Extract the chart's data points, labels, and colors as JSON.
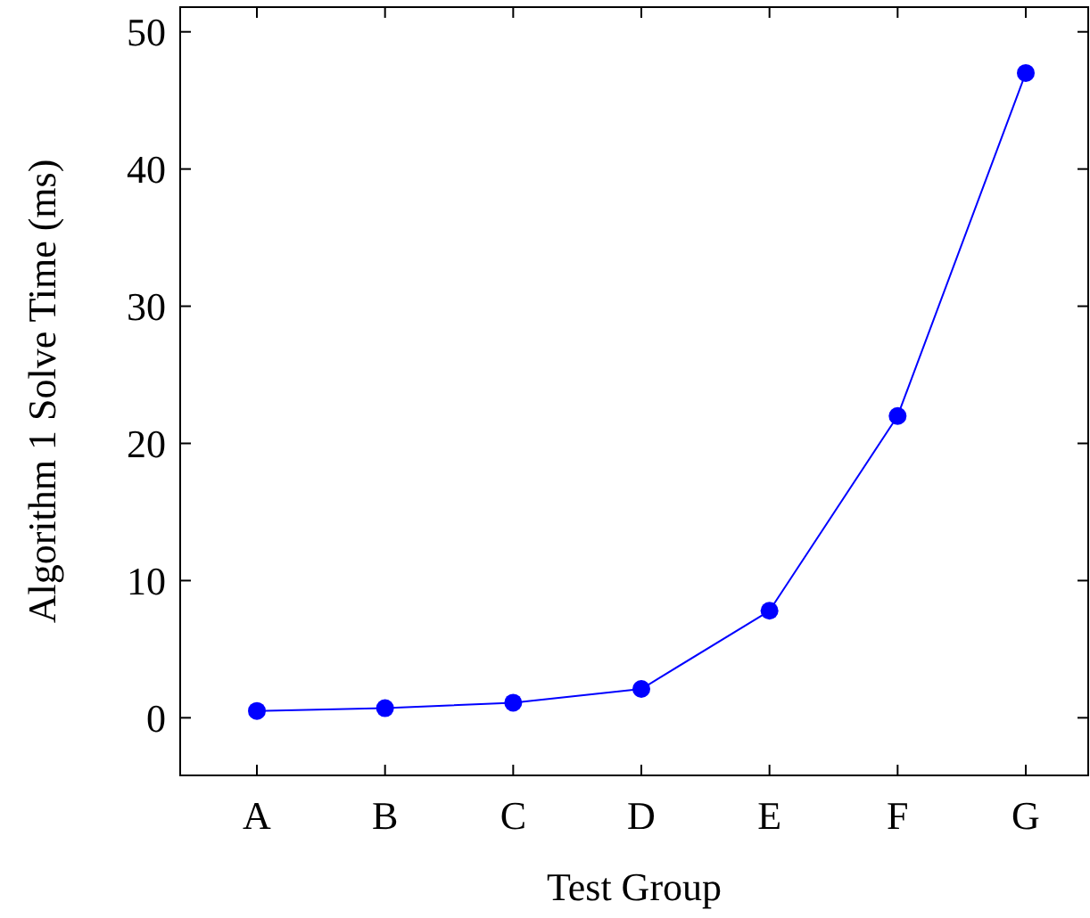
{
  "chart_data": {
    "type": "line",
    "xlabel": "Test Group",
    "ylabel": "Algorithm 1 Solve Time (ms)",
    "categories": [
      "A",
      "B",
      "C",
      "D",
      "E",
      "F",
      "G"
    ],
    "series": [
      {
        "color": "#0000ff",
        "values": [
          0.5,
          0.7,
          1.1,
          2.1,
          7.8,
          22,
          47
        ]
      }
    ],
    "ylim": [
      -4.2,
      51.8
    ],
    "yticks": [
      0,
      10,
      20,
      30,
      40,
      50
    ],
    "marker": "circle",
    "line_style": "solid",
    "grid": false
  }
}
